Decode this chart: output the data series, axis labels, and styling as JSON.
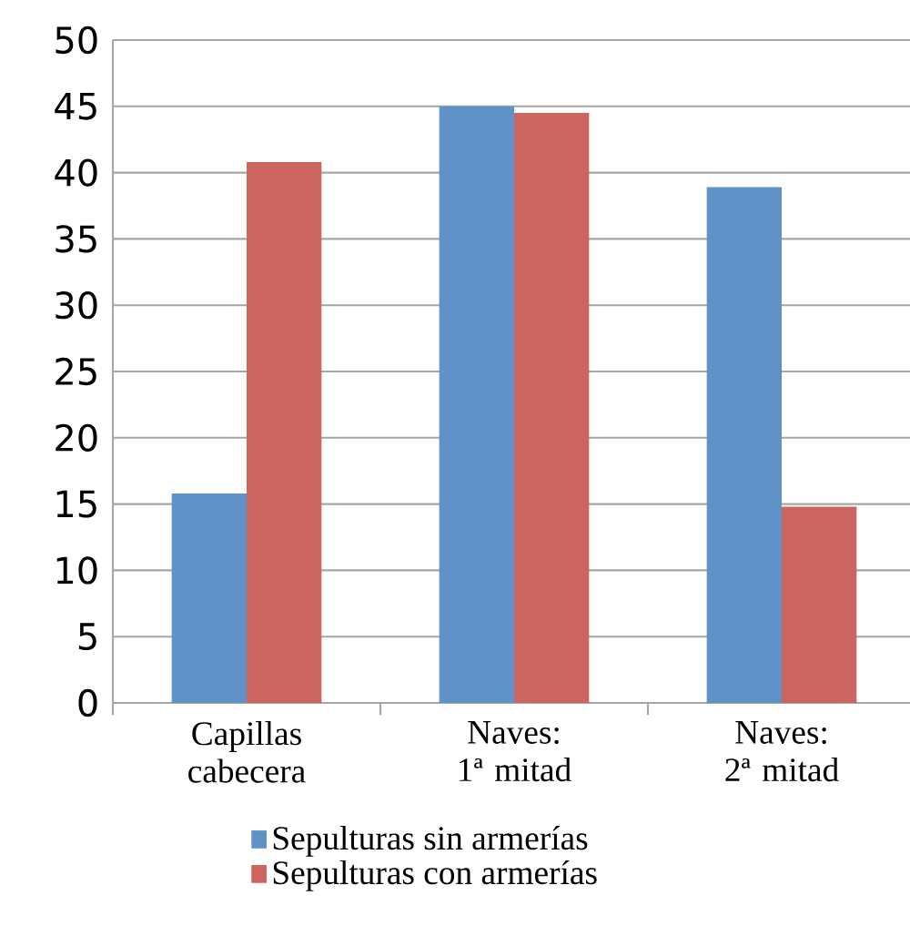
{
  "chart_data": {
    "type": "bar",
    "categories": [
      "Capillas cabecera",
      "Naves: 1ª mitad",
      "Naves: 2ª mitad"
    ],
    "series": [
      {
        "name": "Sepulturas sin armerías",
        "color": "#5f92c7",
        "values": [
          15.8,
          45.0,
          38.9
        ]
      },
      {
        "name": "Sepulturas con armerías",
        "color": "#cc6560",
        "values": [
          40.8,
          44.5,
          14.8
        ]
      }
    ],
    "ylim": [
      0,
      50
    ],
    "yticks": [
      0,
      5,
      10,
      15,
      20,
      25,
      30,
      35,
      40,
      45,
      50
    ],
    "grid": "y",
    "legend": "bottom"
  }
}
